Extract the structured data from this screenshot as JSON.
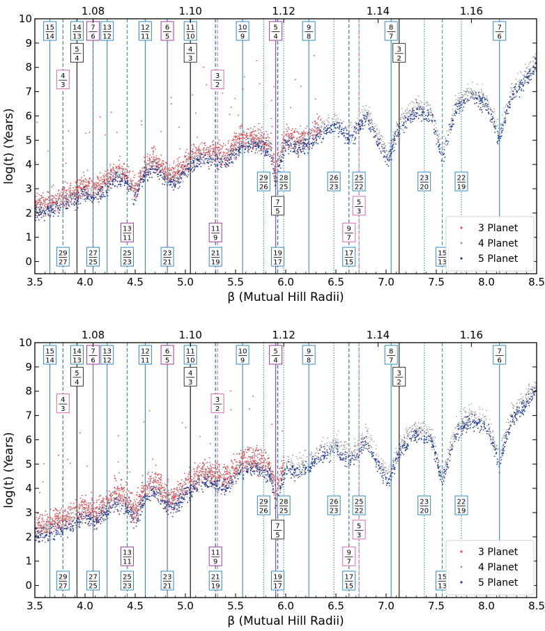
{
  "chart_data": [
    {
      "type": "scatter",
      "xlabel": "β (Mutual Hill Radii)",
      "ylabel": "log(t) (Years)",
      "xlim": [
        3.5,
        8.5
      ],
      "ylim": [
        -0.5,
        10
      ],
      "x_ticks": [
        "3.5",
        "4.0",
        "4.5",
        "5.0",
        "5.5",
        "6.0",
        "6.5",
        "7.0",
        "7.5",
        "8.0",
        "8.5"
      ],
      "y_ticks": [
        "0",
        "1",
        "2",
        "3",
        "4",
        "5",
        "6",
        "7",
        "8",
        "9",
        "10"
      ],
      "top_axis_ticks": [
        {
          "label": "1.08",
          "beta": 4.08
        },
        {
          "label": "1.10",
          "beta": 5.05
        },
        {
          "label": "1.12",
          "beta": 5.98
        },
        {
          "label": "1.14",
          "beta": 6.92
        },
        {
          "label": "1.16",
          "beta": 7.85
        }
      ],
      "legend": {
        "position": "lower-right"
      },
      "series": [
        {
          "name": "3 Planet",
          "color": "#e8474b",
          "x_range": [
            3.5,
            6.35
          ],
          "offset": 0.35,
          "spread": 0.45
        },
        {
          "name": "4 Planet",
          "color": "#a8a8a8",
          "x_range": [
            3.5,
            8.5
          ],
          "offset": 0.25,
          "spread": 0.35
        },
        {
          "name": "5 Planet",
          "color": "#1f3a93",
          "x_range": [
            3.5,
            8.5
          ],
          "offset": 0.0,
          "spread": 0.3
        }
      ],
      "baseline": [
        [
          3.5,
          2.0
        ],
        [
          3.65,
          2.1
        ],
        [
          3.78,
          2.3
        ],
        [
          3.92,
          2.6
        ],
        [
          4.0,
          2.8
        ],
        [
          4.1,
          2.6
        ],
        [
          4.22,
          3.0
        ],
        [
          4.3,
          3.4
        ],
        [
          4.4,
          3.3
        ],
        [
          4.5,
          2.6
        ],
        [
          4.6,
          3.6
        ],
        [
          4.7,
          3.9
        ],
        [
          4.8,
          3.3
        ],
        [
          4.9,
          3.2
        ],
        [
          5.0,
          3.7
        ],
        [
          5.08,
          4.0
        ],
        [
          5.2,
          4.3
        ],
        [
          5.3,
          4.1
        ],
        [
          5.4,
          4.0
        ],
        [
          5.55,
          4.7
        ],
        [
          5.7,
          4.8
        ],
        [
          5.85,
          4.5
        ],
        [
          5.9,
          3.3
        ],
        [
          6.0,
          4.8
        ],
        [
          6.1,
          4.6
        ],
        [
          6.22,
          4.8
        ],
        [
          6.35,
          5.3
        ],
        [
          6.5,
          5.6
        ],
        [
          6.6,
          5.2
        ],
        [
          6.65,
          5.0
        ],
        [
          6.8,
          5.9
        ],
        [
          6.9,
          5.1
        ],
        [
          7.02,
          4.2
        ],
        [
          7.15,
          5.6
        ],
        [
          7.3,
          6.2
        ],
        [
          7.45,
          6.0
        ],
        [
          7.56,
          4.2
        ],
        [
          7.7,
          6.3
        ],
        [
          7.85,
          6.8
        ],
        [
          8.0,
          6.5
        ],
        [
          8.13,
          5.0
        ],
        [
          8.25,
          6.8
        ],
        [
          8.4,
          7.5
        ],
        [
          8.5,
          8.1
        ]
      ],
      "resonances": [
        {
          "num": "15",
          "den": "14",
          "beta": 3.65,
          "y": 9.5,
          "color": "#2e8bc0",
          "style": "solid"
        },
        {
          "num": "14",
          "den": "13",
          "beta": 3.92,
          "y": 9.5,
          "color": "#2e8bc0",
          "style": "solid"
        },
        {
          "num": "7",
          "den": "6",
          "beta": 4.08,
          "y": 9.5,
          "color": "#9b3a9b",
          "style": "solid"
        },
        {
          "num": "13",
          "den": "12",
          "beta": 4.22,
          "y": 9.5,
          "color": "#2e8bc0",
          "style": "solid"
        },
        {
          "num": "12",
          "den": "11",
          "beta": 4.6,
          "y": 9.5,
          "color": "#2e8bc0",
          "style": "solid"
        },
        {
          "num": "6",
          "den": "5",
          "beta": 4.82,
          "y": 9.5,
          "color": "#9b3a9b",
          "style": "solid"
        },
        {
          "num": "11",
          "den": "10",
          "beta": 5.05,
          "y": 9.5,
          "color": "#2e8bc0",
          "style": "solid"
        },
        {
          "num": "10",
          "den": "9",
          "beta": 5.57,
          "y": 9.5,
          "color": "#2e8bc0",
          "style": "solid"
        },
        {
          "num": "5",
          "den": "4",
          "beta": 5.9,
          "y": 9.5,
          "color": "#9b3a9b",
          "style": "solid"
        },
        {
          "num": "9",
          "den": "8",
          "beta": 6.23,
          "y": 9.5,
          "color": "#2e8bc0",
          "style": "solid"
        },
        {
          "num": "8",
          "den": "7",
          "beta": 7.05,
          "y": 9.5,
          "color": "#2e8bc0",
          "style": "solid"
        },
        {
          "num": "7",
          "den": "6",
          "beta": 8.13,
          "y": 9.5,
          "color": "#2e8bc0",
          "style": "solid"
        },
        {
          "num": "5",
          "den": "4",
          "beta": 3.92,
          "y": 8.6,
          "color": "#333333",
          "style": "solid"
        },
        {
          "num": "4",
          "den": "3",
          "beta": 5.05,
          "y": 8.6,
          "color": "#333333",
          "style": "solid"
        },
        {
          "num": "3",
          "den": "2",
          "beta": 7.13,
          "y": 8.6,
          "color": "#333333",
          "style": "solid"
        },
        {
          "num": "4",
          "den": "3",
          "beta": 3.78,
          "y": 7.5,
          "color": "#d56ab0",
          "style": "dashed"
        },
        {
          "num": "3",
          "den": "2",
          "beta": 5.32,
          "y": 7.5,
          "color": "#d56ab0",
          "style": "dashed"
        },
        {
          "num": "29",
          "den": "26",
          "beta": 5.78,
          "y": 3.3,
          "color": "#2e8bc0",
          "style": "dotted"
        },
        {
          "num": "28",
          "den": "25",
          "beta": 5.98,
          "y": 3.3,
          "color": "#2e8bc0",
          "style": "dotted"
        },
        {
          "num": "26",
          "den": "23",
          "beta": 6.48,
          "y": 3.3,
          "color": "#2e8bc0",
          "style": "dotted"
        },
        {
          "num": "25",
          "den": "22",
          "beta": 6.73,
          "y": 3.3,
          "color": "#2e8bc0",
          "style": "dotted"
        },
        {
          "num": "23",
          "den": "20",
          "beta": 7.38,
          "y": 3.3,
          "color": "#2e8bc0",
          "style": "dotted"
        },
        {
          "num": "22",
          "den": "19",
          "beta": 7.75,
          "y": 3.3,
          "color": "#2e8bc0",
          "style": "dotted"
        },
        {
          "num": "7",
          "den": "5",
          "beta": 5.92,
          "y": 2.3,
          "color": "#333333",
          "style": "dashed"
        },
        {
          "num": "5",
          "den": "3",
          "beta": 6.73,
          "y": 2.3,
          "color": "#d56ab0",
          "style": "dashed"
        },
        {
          "num": "13",
          "den": "11",
          "beta": 4.42,
          "y": 1.2,
          "color": "#9b3a9b",
          "style": "dashed"
        },
        {
          "num": "11",
          "den": "9",
          "beta": 5.3,
          "y": 1.2,
          "color": "#9b3a9b",
          "style": "dashed"
        },
        {
          "num": "9",
          "den": "7",
          "beta": 6.63,
          "y": 1.2,
          "color": "#d56ab0",
          "style": "dashed"
        },
        {
          "num": "29",
          "den": "27",
          "beta": 3.78,
          "y": 0.2,
          "color": "#2e8bc0",
          "style": "dashed"
        },
        {
          "num": "27",
          "den": "25",
          "beta": 4.08,
          "y": 0.2,
          "color": "#2e8bc0",
          "style": "dashed"
        },
        {
          "num": "25",
          "den": "23",
          "beta": 4.42,
          "y": 0.2,
          "color": "#2e8bc0",
          "style": "dashed"
        },
        {
          "num": "23",
          "den": "21",
          "beta": 4.82,
          "y": 0.2,
          "color": "#2e8bc0",
          "style": "dashed"
        },
        {
          "num": "21",
          "den": "19",
          "beta": 5.3,
          "y": 0.2,
          "color": "#2e8bc0",
          "style": "dashed"
        },
        {
          "num": "19",
          "den": "17",
          "beta": 5.92,
          "y": 0.2,
          "color": "#2e8bc0",
          "style": "dashed"
        },
        {
          "num": "17",
          "den": "15",
          "beta": 6.63,
          "y": 0.2,
          "color": "#2e8bc0",
          "style": "dashed"
        },
        {
          "num": "15",
          "den": "13",
          "beta": 7.56,
          "y": 0.2,
          "color": "#2e8bc0",
          "style": "dashed"
        }
      ]
    },
    {
      "type": "scatter",
      "xlabel": "β (Mutual Hill Radii)",
      "ylabel": "log(t) (Years)",
      "xlim": [
        3.5,
        8.5
      ],
      "ylim": [
        -0.5,
        10
      ],
      "x_ticks": [
        "3.5",
        "4.0",
        "4.5",
        "5.0",
        "5.5",
        "6.0",
        "6.5",
        "7.0",
        "7.5",
        "8.0",
        "8.5"
      ],
      "y_ticks": [
        "0",
        "1",
        "2",
        "3",
        "4",
        "5",
        "6",
        "7",
        "8",
        "9",
        "10"
      ],
      "top_axis_ticks": [
        {
          "label": "1.08",
          "beta": 4.08
        },
        {
          "label": "1.10",
          "beta": 5.05
        },
        {
          "label": "1.12",
          "beta": 5.98
        },
        {
          "label": "1.14",
          "beta": 6.92
        },
        {
          "label": "1.16",
          "beta": 7.85
        }
      ],
      "legend": {
        "position": "lower-right"
      },
      "series": [
        {
          "name": "3 Planet",
          "color": "#e8474b",
          "x_range": [
            3.5,
            5.98
          ],
          "offset": 0.4,
          "spread": 0.5
        },
        {
          "name": "4 Planet",
          "color": "#a8a8a8",
          "x_range": [
            3.5,
            8.5
          ],
          "offset": 0.3,
          "spread": 0.4
        },
        {
          "name": "5 Planet",
          "color": "#1f3a93",
          "x_range": [
            3.5,
            8.5
          ],
          "offset": 0.0,
          "spread": 0.3
        }
      ],
      "baseline": [
        [
          3.5,
          2.0
        ],
        [
          3.65,
          2.1
        ],
        [
          3.78,
          2.3
        ],
        [
          3.92,
          2.6
        ],
        [
          4.0,
          2.8
        ],
        [
          4.1,
          2.6
        ],
        [
          4.22,
          3.0
        ],
        [
          4.3,
          3.4
        ],
        [
          4.4,
          3.3
        ],
        [
          4.5,
          2.6
        ],
        [
          4.6,
          3.6
        ],
        [
          4.7,
          3.9
        ],
        [
          4.8,
          3.3
        ],
        [
          4.9,
          3.2
        ],
        [
          5.0,
          3.7
        ],
        [
          5.08,
          4.0
        ],
        [
          5.2,
          4.3
        ],
        [
          5.3,
          4.1
        ],
        [
          5.4,
          4.0
        ],
        [
          5.55,
          4.7
        ],
        [
          5.7,
          4.8
        ],
        [
          5.85,
          4.5
        ],
        [
          5.9,
          3.3
        ],
        [
          6.0,
          4.8
        ],
        [
          6.1,
          4.6
        ],
        [
          6.22,
          4.8
        ],
        [
          6.35,
          5.3
        ],
        [
          6.5,
          5.6
        ],
        [
          6.6,
          5.2
        ],
        [
          6.65,
          5.0
        ],
        [
          6.8,
          5.9
        ],
        [
          6.9,
          5.1
        ],
        [
          7.02,
          4.2
        ],
        [
          7.15,
          5.6
        ],
        [
          7.3,
          6.2
        ],
        [
          7.45,
          6.0
        ],
        [
          7.56,
          4.2
        ],
        [
          7.7,
          6.3
        ],
        [
          7.85,
          6.8
        ],
        [
          8.0,
          6.5
        ],
        [
          8.13,
          5.0
        ],
        [
          8.25,
          6.8
        ],
        [
          8.4,
          7.5
        ],
        [
          8.5,
          8.1
        ]
      ],
      "resonances": [
        {
          "num": "15",
          "den": "14",
          "beta": 3.65,
          "y": 9.5,
          "color": "#2e8bc0",
          "style": "solid"
        },
        {
          "num": "14",
          "den": "13",
          "beta": 3.92,
          "y": 9.5,
          "color": "#2e8bc0",
          "style": "solid"
        },
        {
          "num": "7",
          "den": "6",
          "beta": 4.08,
          "y": 9.5,
          "color": "#9b3a9b",
          "style": "solid"
        },
        {
          "num": "13",
          "den": "12",
          "beta": 4.22,
          "y": 9.5,
          "color": "#2e8bc0",
          "style": "solid"
        },
        {
          "num": "12",
          "den": "11",
          "beta": 4.6,
          "y": 9.5,
          "color": "#2e8bc0",
          "style": "solid"
        },
        {
          "num": "6",
          "den": "5",
          "beta": 4.82,
          "y": 9.5,
          "color": "#9b3a9b",
          "style": "solid"
        },
        {
          "num": "11",
          "den": "10",
          "beta": 5.05,
          "y": 9.5,
          "color": "#2e8bc0",
          "style": "solid"
        },
        {
          "num": "10",
          "den": "9",
          "beta": 5.57,
          "y": 9.5,
          "color": "#2e8bc0",
          "style": "solid"
        },
        {
          "num": "5",
          "den": "4",
          "beta": 5.9,
          "y": 9.5,
          "color": "#9b3a9b",
          "style": "solid"
        },
        {
          "num": "9",
          "den": "8",
          "beta": 6.23,
          "y": 9.5,
          "color": "#2e8bc0",
          "style": "solid"
        },
        {
          "num": "8",
          "den": "7",
          "beta": 7.05,
          "y": 9.5,
          "color": "#2e8bc0",
          "style": "solid"
        },
        {
          "num": "7",
          "den": "6",
          "beta": 8.13,
          "y": 9.5,
          "color": "#2e8bc0",
          "style": "solid"
        },
        {
          "num": "5",
          "den": "4",
          "beta": 3.92,
          "y": 8.6,
          "color": "#333333",
          "style": "solid"
        },
        {
          "num": "4",
          "den": "3",
          "beta": 5.05,
          "y": 8.6,
          "color": "#333333",
          "style": "solid"
        },
        {
          "num": "3",
          "den": "2",
          "beta": 7.13,
          "y": 8.6,
          "color": "#333333",
          "style": "solid"
        },
        {
          "num": "4",
          "den": "3",
          "beta": 3.78,
          "y": 7.5,
          "color": "#d56ab0",
          "style": "dashed"
        },
        {
          "num": "3",
          "den": "2",
          "beta": 5.32,
          "y": 7.5,
          "color": "#d56ab0",
          "style": "dashed"
        },
        {
          "num": "29",
          "den": "26",
          "beta": 5.78,
          "y": 3.3,
          "color": "#2e8bc0",
          "style": "dotted"
        },
        {
          "num": "28",
          "den": "25",
          "beta": 5.98,
          "y": 3.3,
          "color": "#2e8bc0",
          "style": "dotted"
        },
        {
          "num": "26",
          "den": "23",
          "beta": 6.48,
          "y": 3.3,
          "color": "#2e8bc0",
          "style": "dotted"
        },
        {
          "num": "25",
          "den": "22",
          "beta": 6.73,
          "y": 3.3,
          "color": "#2e8bc0",
          "style": "dotted"
        },
        {
          "num": "23",
          "den": "20",
          "beta": 7.38,
          "y": 3.3,
          "color": "#2e8bc0",
          "style": "dotted"
        },
        {
          "num": "22",
          "den": "19",
          "beta": 7.75,
          "y": 3.3,
          "color": "#2e8bc0",
          "style": "dotted"
        },
        {
          "num": "7",
          "den": "5",
          "beta": 5.92,
          "y": 2.3,
          "color": "#333333",
          "style": "dashed"
        },
        {
          "num": "5",
          "den": "3",
          "beta": 6.73,
          "y": 2.3,
          "color": "#d56ab0",
          "style": "dashed"
        },
        {
          "num": "13",
          "den": "11",
          "beta": 4.42,
          "y": 1.2,
          "color": "#9b3a9b",
          "style": "dashed"
        },
        {
          "num": "11",
          "den": "9",
          "beta": 5.3,
          "y": 1.2,
          "color": "#9b3a9b",
          "style": "dashed"
        },
        {
          "num": "9",
          "den": "7",
          "beta": 6.63,
          "y": 1.2,
          "color": "#d56ab0",
          "style": "dashed"
        },
        {
          "num": "29",
          "den": "27",
          "beta": 3.78,
          "y": 0.2,
          "color": "#2e8bc0",
          "style": "dashed"
        },
        {
          "num": "27",
          "den": "25",
          "beta": 4.08,
          "y": 0.2,
          "color": "#2e8bc0",
          "style": "dashed"
        },
        {
          "num": "25",
          "den": "23",
          "beta": 4.42,
          "y": 0.2,
          "color": "#2e8bc0",
          "style": "dashed"
        },
        {
          "num": "23",
          "den": "21",
          "beta": 4.82,
          "y": 0.2,
          "color": "#2e8bc0",
          "style": "dashed"
        },
        {
          "num": "21",
          "den": "19",
          "beta": 5.3,
          "y": 0.2,
          "color": "#2e8bc0",
          "style": "dashed"
        },
        {
          "num": "19",
          "den": "17",
          "beta": 5.92,
          "y": 0.2,
          "color": "#2e8bc0",
          "style": "dashed"
        },
        {
          "num": "17",
          "den": "15",
          "beta": 6.63,
          "y": 0.2,
          "color": "#2e8bc0",
          "style": "dashed"
        },
        {
          "num": "15",
          "den": "13",
          "beta": 7.56,
          "y": 0.2,
          "color": "#2e8bc0",
          "style": "dashed"
        }
      ]
    }
  ]
}
